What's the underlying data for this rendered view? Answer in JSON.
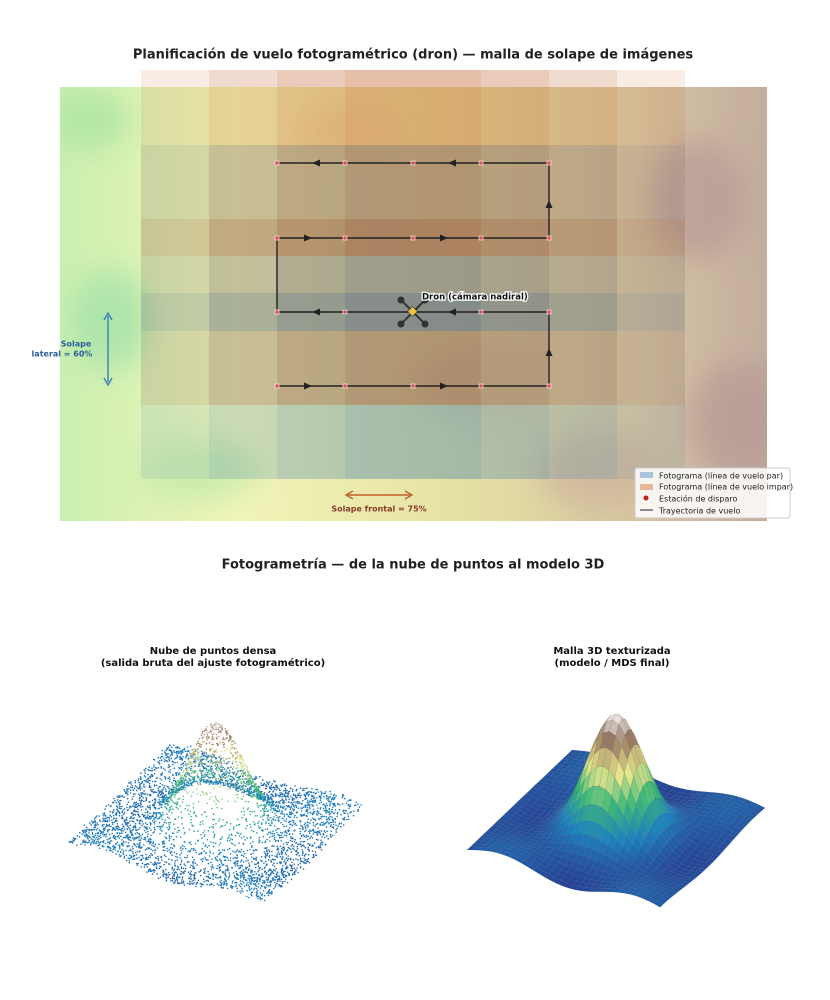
{
  "top_panel": {
    "title": "Planificación de vuelo fotogramétrico (dron) — malla de solape de imágenes",
    "drone_label": "Dron (cámara nadiral)",
    "side_overlap": [
      "Solape",
      "lateral = 60%"
    ],
    "front_overlap": "Solape frontal ≈ 75%",
    "legend": [
      "Fotograma (línea de vuelo par)",
      "Fotograma (línea de vuelo impar)",
      "Estación de disparo",
      "Trayectoria de vuelo"
    ]
  },
  "bottom_panel": {
    "title": "Fotogrametría — de la nube de puntos al modelo 3D",
    "left_title": [
      "Nube de puntos densa",
      "(salida bruta del ajuste fotogramétrico)"
    ],
    "right_title": [
      "Malla 3D texturizada",
      "(modelo / MDS final)"
    ]
  }
}
